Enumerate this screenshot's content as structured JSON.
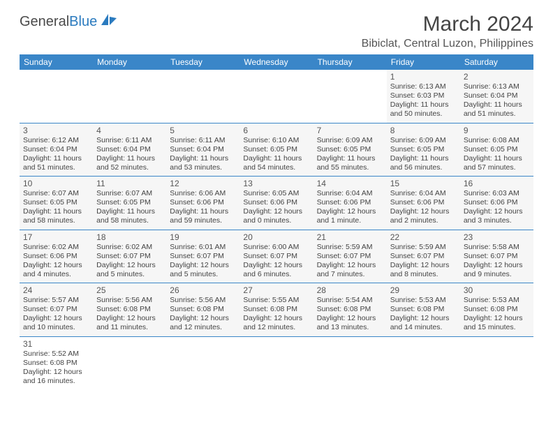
{
  "brand": {
    "text1": "General",
    "text2": "Blue"
  },
  "colors": {
    "header_bg": "#3a86c8",
    "header_text": "#ffffff",
    "cell_bg": "#f6f6f6",
    "border": "#3a86c8",
    "text": "#444444",
    "brand_gray": "#4a4a4a",
    "brand_blue": "#2b7bbf"
  },
  "title": "March 2024",
  "location": "Bibiclat, Central Luzon, Philippines",
  "weekdays": [
    "Sunday",
    "Monday",
    "Tuesday",
    "Wednesday",
    "Thursday",
    "Friday",
    "Saturday"
  ],
  "layout": {
    "first_weekday_index": 5,
    "days_in_month": 31
  },
  "days": {
    "1": {
      "sunrise": "6:13 AM",
      "sunset": "6:03 PM",
      "daylight": "11 hours and 50 minutes."
    },
    "2": {
      "sunrise": "6:13 AM",
      "sunset": "6:04 PM",
      "daylight": "11 hours and 51 minutes."
    },
    "3": {
      "sunrise": "6:12 AM",
      "sunset": "6:04 PM",
      "daylight": "11 hours and 51 minutes."
    },
    "4": {
      "sunrise": "6:11 AM",
      "sunset": "6:04 PM",
      "daylight": "11 hours and 52 minutes."
    },
    "5": {
      "sunrise": "6:11 AM",
      "sunset": "6:04 PM",
      "daylight": "11 hours and 53 minutes."
    },
    "6": {
      "sunrise": "6:10 AM",
      "sunset": "6:05 PM",
      "daylight": "11 hours and 54 minutes."
    },
    "7": {
      "sunrise": "6:09 AM",
      "sunset": "6:05 PM",
      "daylight": "11 hours and 55 minutes."
    },
    "8": {
      "sunrise": "6:09 AM",
      "sunset": "6:05 PM",
      "daylight": "11 hours and 56 minutes."
    },
    "9": {
      "sunrise": "6:08 AM",
      "sunset": "6:05 PM",
      "daylight": "11 hours and 57 minutes."
    },
    "10": {
      "sunrise": "6:07 AM",
      "sunset": "6:05 PM",
      "daylight": "11 hours and 58 minutes."
    },
    "11": {
      "sunrise": "6:07 AM",
      "sunset": "6:05 PM",
      "daylight": "11 hours and 58 minutes."
    },
    "12": {
      "sunrise": "6:06 AM",
      "sunset": "6:06 PM",
      "daylight": "11 hours and 59 minutes."
    },
    "13": {
      "sunrise": "6:05 AM",
      "sunset": "6:06 PM",
      "daylight": "12 hours and 0 minutes."
    },
    "14": {
      "sunrise": "6:04 AM",
      "sunset": "6:06 PM",
      "daylight": "12 hours and 1 minute."
    },
    "15": {
      "sunrise": "6:04 AM",
      "sunset": "6:06 PM",
      "daylight": "12 hours and 2 minutes."
    },
    "16": {
      "sunrise": "6:03 AM",
      "sunset": "6:06 PM",
      "daylight": "12 hours and 3 minutes."
    },
    "17": {
      "sunrise": "6:02 AM",
      "sunset": "6:06 PM",
      "daylight": "12 hours and 4 minutes."
    },
    "18": {
      "sunrise": "6:02 AM",
      "sunset": "6:07 PM",
      "daylight": "12 hours and 5 minutes."
    },
    "19": {
      "sunrise": "6:01 AM",
      "sunset": "6:07 PM",
      "daylight": "12 hours and 5 minutes."
    },
    "20": {
      "sunrise": "6:00 AM",
      "sunset": "6:07 PM",
      "daylight": "12 hours and 6 minutes."
    },
    "21": {
      "sunrise": "5:59 AM",
      "sunset": "6:07 PM",
      "daylight": "12 hours and 7 minutes."
    },
    "22": {
      "sunrise": "5:59 AM",
      "sunset": "6:07 PM",
      "daylight": "12 hours and 8 minutes."
    },
    "23": {
      "sunrise": "5:58 AM",
      "sunset": "6:07 PM",
      "daylight": "12 hours and 9 minutes."
    },
    "24": {
      "sunrise": "5:57 AM",
      "sunset": "6:07 PM",
      "daylight": "12 hours and 10 minutes."
    },
    "25": {
      "sunrise": "5:56 AM",
      "sunset": "6:08 PM",
      "daylight": "12 hours and 11 minutes."
    },
    "26": {
      "sunrise": "5:56 AM",
      "sunset": "6:08 PM",
      "daylight": "12 hours and 12 minutes."
    },
    "27": {
      "sunrise": "5:55 AM",
      "sunset": "6:08 PM",
      "daylight": "12 hours and 12 minutes."
    },
    "28": {
      "sunrise": "5:54 AM",
      "sunset": "6:08 PM",
      "daylight": "12 hours and 13 minutes."
    },
    "29": {
      "sunrise": "5:53 AM",
      "sunset": "6:08 PM",
      "daylight": "12 hours and 14 minutes."
    },
    "30": {
      "sunrise": "5:53 AM",
      "sunset": "6:08 PM",
      "daylight": "12 hours and 15 minutes."
    },
    "31": {
      "sunrise": "5:52 AM",
      "sunset": "6:08 PM",
      "daylight": "12 hours and 16 minutes."
    }
  },
  "labels": {
    "sunrise": "Sunrise: ",
    "sunset": "Sunset: ",
    "daylight": "Daylight: "
  }
}
